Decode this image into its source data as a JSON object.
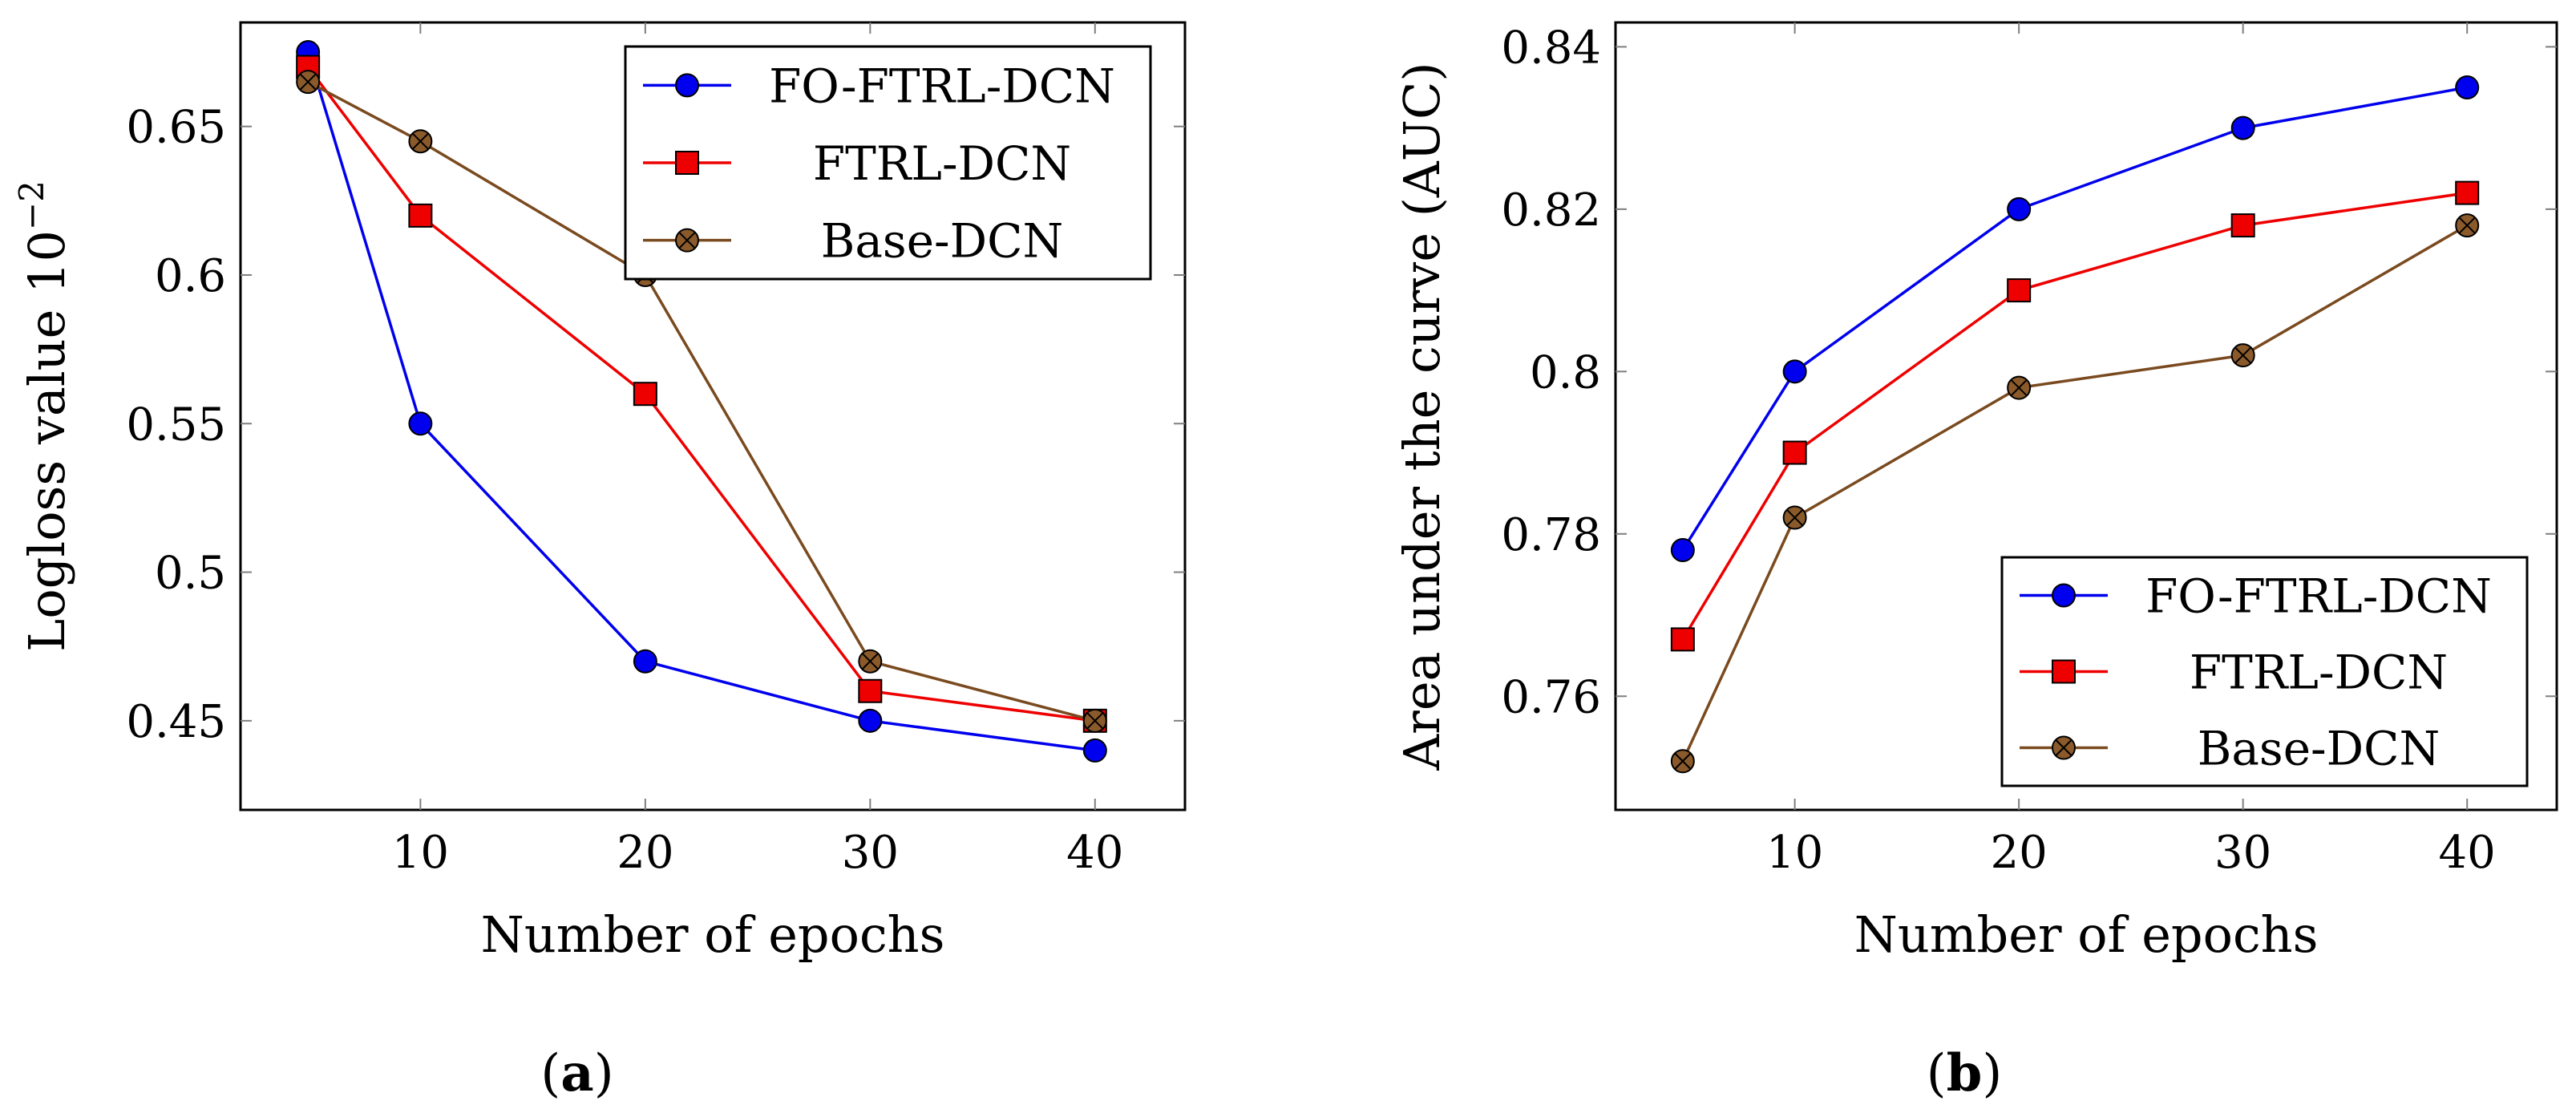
{
  "colors": {
    "fo_ftrl_dcn": "#0000ee",
    "ftrl_dcn": "#ee0000",
    "base_dcn": "#7a4a1f",
    "base_dcn_marker": "#8b5a2b"
  },
  "chart_data": [
    {
      "type": "line",
      "caption": {
        "open": "(",
        "letter": "a",
        "close": ")"
      },
      "xlabel": "Number of epochs",
      "ylabel": "Logloss value 10",
      "ylabel_exponent": "−2",
      "xlim": [
        2,
        44
      ],
      "ylim": [
        0.42,
        0.685
      ],
      "xticks": [
        10,
        20,
        30,
        40
      ],
      "xtick_labels": [
        "10",
        "20",
        "30",
        "40"
      ],
      "yticks": [
        0.45,
        0.5,
        0.55,
        0.6,
        0.65
      ],
      "ytick_labels": [
        "0.45",
        "0.5",
        "0.55",
        "0.6",
        "0.65"
      ],
      "legend_position": "top-right",
      "x": [
        5,
        10,
        20,
        30,
        40
      ],
      "series": [
        {
          "name": "FO-FTRL-DCN",
          "marker": "circle",
          "values": [
            0.675,
            0.55,
            0.47,
            0.45,
            0.44
          ]
        },
        {
          "name": "FTRL-DCN",
          "marker": "square",
          "values": [
            0.67,
            0.62,
            0.56,
            0.46,
            0.45
          ]
        },
        {
          "name": "Base-DCN",
          "marker": "otimes",
          "values": [
            0.665,
            0.645,
            0.6,
            0.47,
            0.45
          ]
        }
      ]
    },
    {
      "type": "line",
      "caption": {
        "open": "(",
        "letter": "b",
        "close": ")"
      },
      "xlabel": "Number of epochs",
      "ylabel": "Area under the curve (AUC)",
      "ylabel_exponent": "",
      "xlim": [
        2,
        44
      ],
      "ylim": [
        0.746,
        0.843
      ],
      "xticks": [
        10,
        20,
        30,
        40
      ],
      "xtick_labels": [
        "10",
        "20",
        "30",
        "40"
      ],
      "yticks": [
        0.76,
        0.78,
        0.8,
        0.82,
        0.84
      ],
      "ytick_labels": [
        "0.76",
        "0.78",
        "0.8",
        "0.82",
        "0.84"
      ],
      "legend_position": "bottom-right",
      "x": [
        5,
        10,
        20,
        30,
        40
      ],
      "series": [
        {
          "name": "FO-FTRL-DCN",
          "marker": "circle",
          "values": [
            0.778,
            0.8,
            0.82,
            0.83,
            0.835
          ]
        },
        {
          "name": "FTRL-DCN",
          "marker": "square",
          "values": [
            0.767,
            0.79,
            0.81,
            0.818,
            0.822
          ]
        },
        {
          "name": "Base-DCN",
          "marker": "otimes",
          "values": [
            0.752,
            0.782,
            0.798,
            0.802,
            0.818
          ]
        }
      ]
    }
  ]
}
